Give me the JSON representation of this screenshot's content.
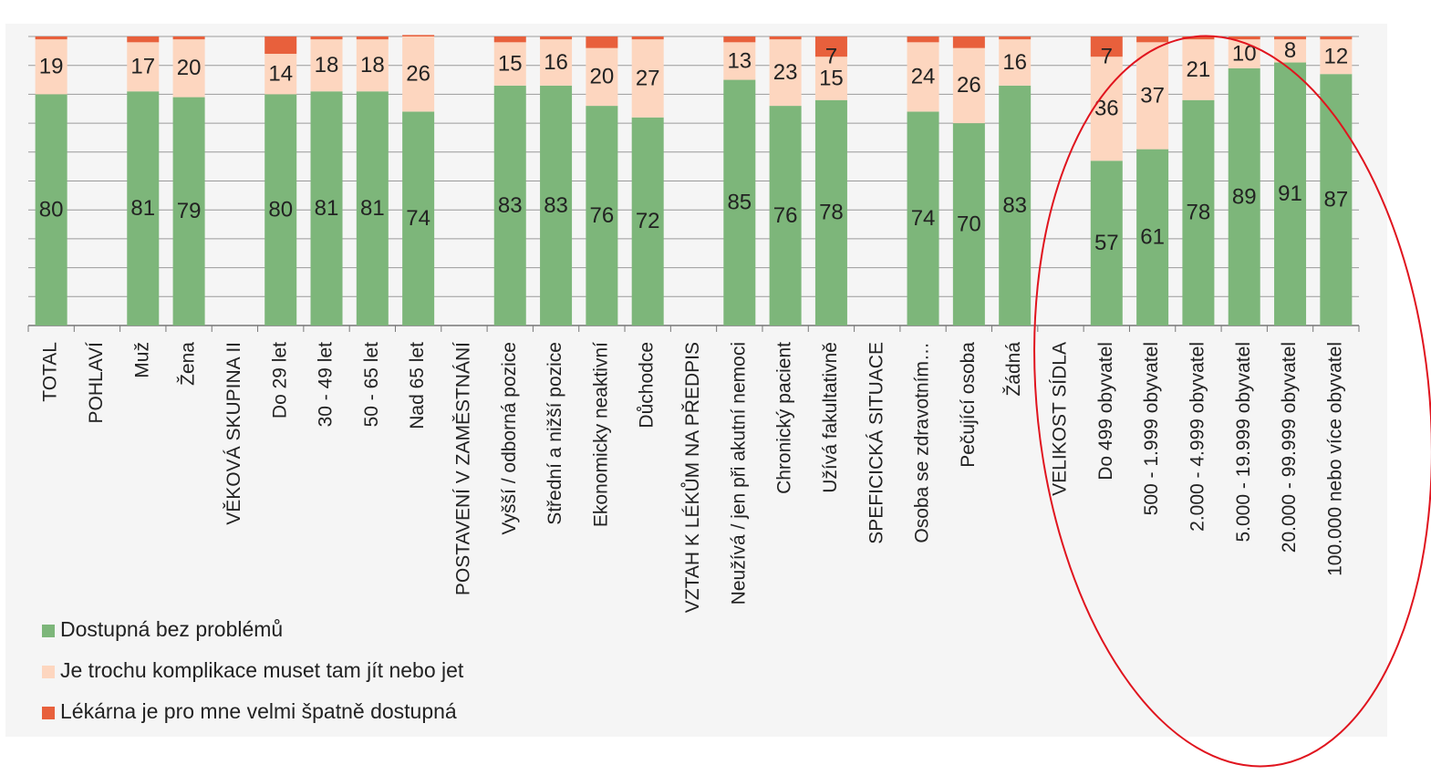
{
  "chart_data": {
    "type": "stacked_bar",
    "categories": [
      "TOTAL",
      "POHLAVÍ",
      "Muž",
      "Žena",
      "VĚKOVÁ SKUPINA II",
      "Do 29 let",
      "30 - 49 let",
      "50 - 65 let",
      "Nad 65 let",
      "POSTAVENÍ V ZAMĚSTNÁNÍ",
      "Vyšší / odborná pozice",
      "Střední a nižší pozice",
      "Ekonomicky neaktivní",
      "Důchodce",
      "VZTAH K LÉKŮM NA PŘEDPIS",
      "Neužívá / jen při akutní nemoci",
      "Chronický pacient",
      "Užívá fakultativně",
      "SPEFICICKÁ SITUACE",
      "Osoba se zdravotním…",
      "Pečující osoba",
      "Žádná",
      "VELIKOST SÍDLA",
      "Do 499 obyvatel",
      "500 - 1.999 obyvatel",
      "2.000 - 4.999 obyvatel",
      "5.000 - 19.999 obyvatel",
      "20.000 - 99.999 obyvatel",
      "100.000 nebo více obyvatel"
    ],
    "series": [
      {
        "name": "Dostupná bez problémů",
        "color": "#7db67a",
        "values": [
          80,
          null,
          81,
          79,
          null,
          80,
          81,
          81,
          74,
          null,
          83,
          83,
          76,
          72,
          null,
          85,
          76,
          78,
          null,
          74,
          70,
          83,
          null,
          57,
          61,
          78,
          89,
          91,
          87
        ]
      },
      {
        "name": "Je trochu komplikace muset tam jít nebo jet",
        "color": "#fdd6bf",
        "values": [
          19,
          null,
          17,
          20,
          null,
          14,
          18,
          18,
          26,
          null,
          15,
          16,
          20,
          27,
          null,
          13,
          23,
          15,
          null,
          24,
          26,
          16,
          null,
          36,
          37,
          21,
          10,
          8,
          12
        ]
      },
      {
        "name": "Lékárna je pro mne velmi špatně dostupná",
        "color": "#e8603c",
        "values": [
          1,
          null,
          2,
          1,
          null,
          6,
          1,
          1,
          0.5,
          null,
          2,
          1,
          4,
          1,
          null,
          2,
          1,
          7,
          null,
          2,
          4,
          1,
          null,
          7,
          2,
          1,
          1,
          1,
          1
        ],
        "value_labels": [
          null,
          null,
          null,
          null,
          null,
          null,
          null,
          null,
          null,
          null,
          null,
          null,
          null,
          null,
          null,
          null,
          null,
          "7",
          null,
          null,
          null,
          null,
          null,
          "7",
          null,
          null,
          null,
          null,
          null
        ]
      }
    ],
    "ylim": [
      0,
      100
    ],
    "yticks": [
      0,
      10,
      20,
      30,
      40,
      50,
      60,
      70,
      80,
      90,
      100
    ],
    "grid": true,
    "legend": "bottom-left"
  }
}
